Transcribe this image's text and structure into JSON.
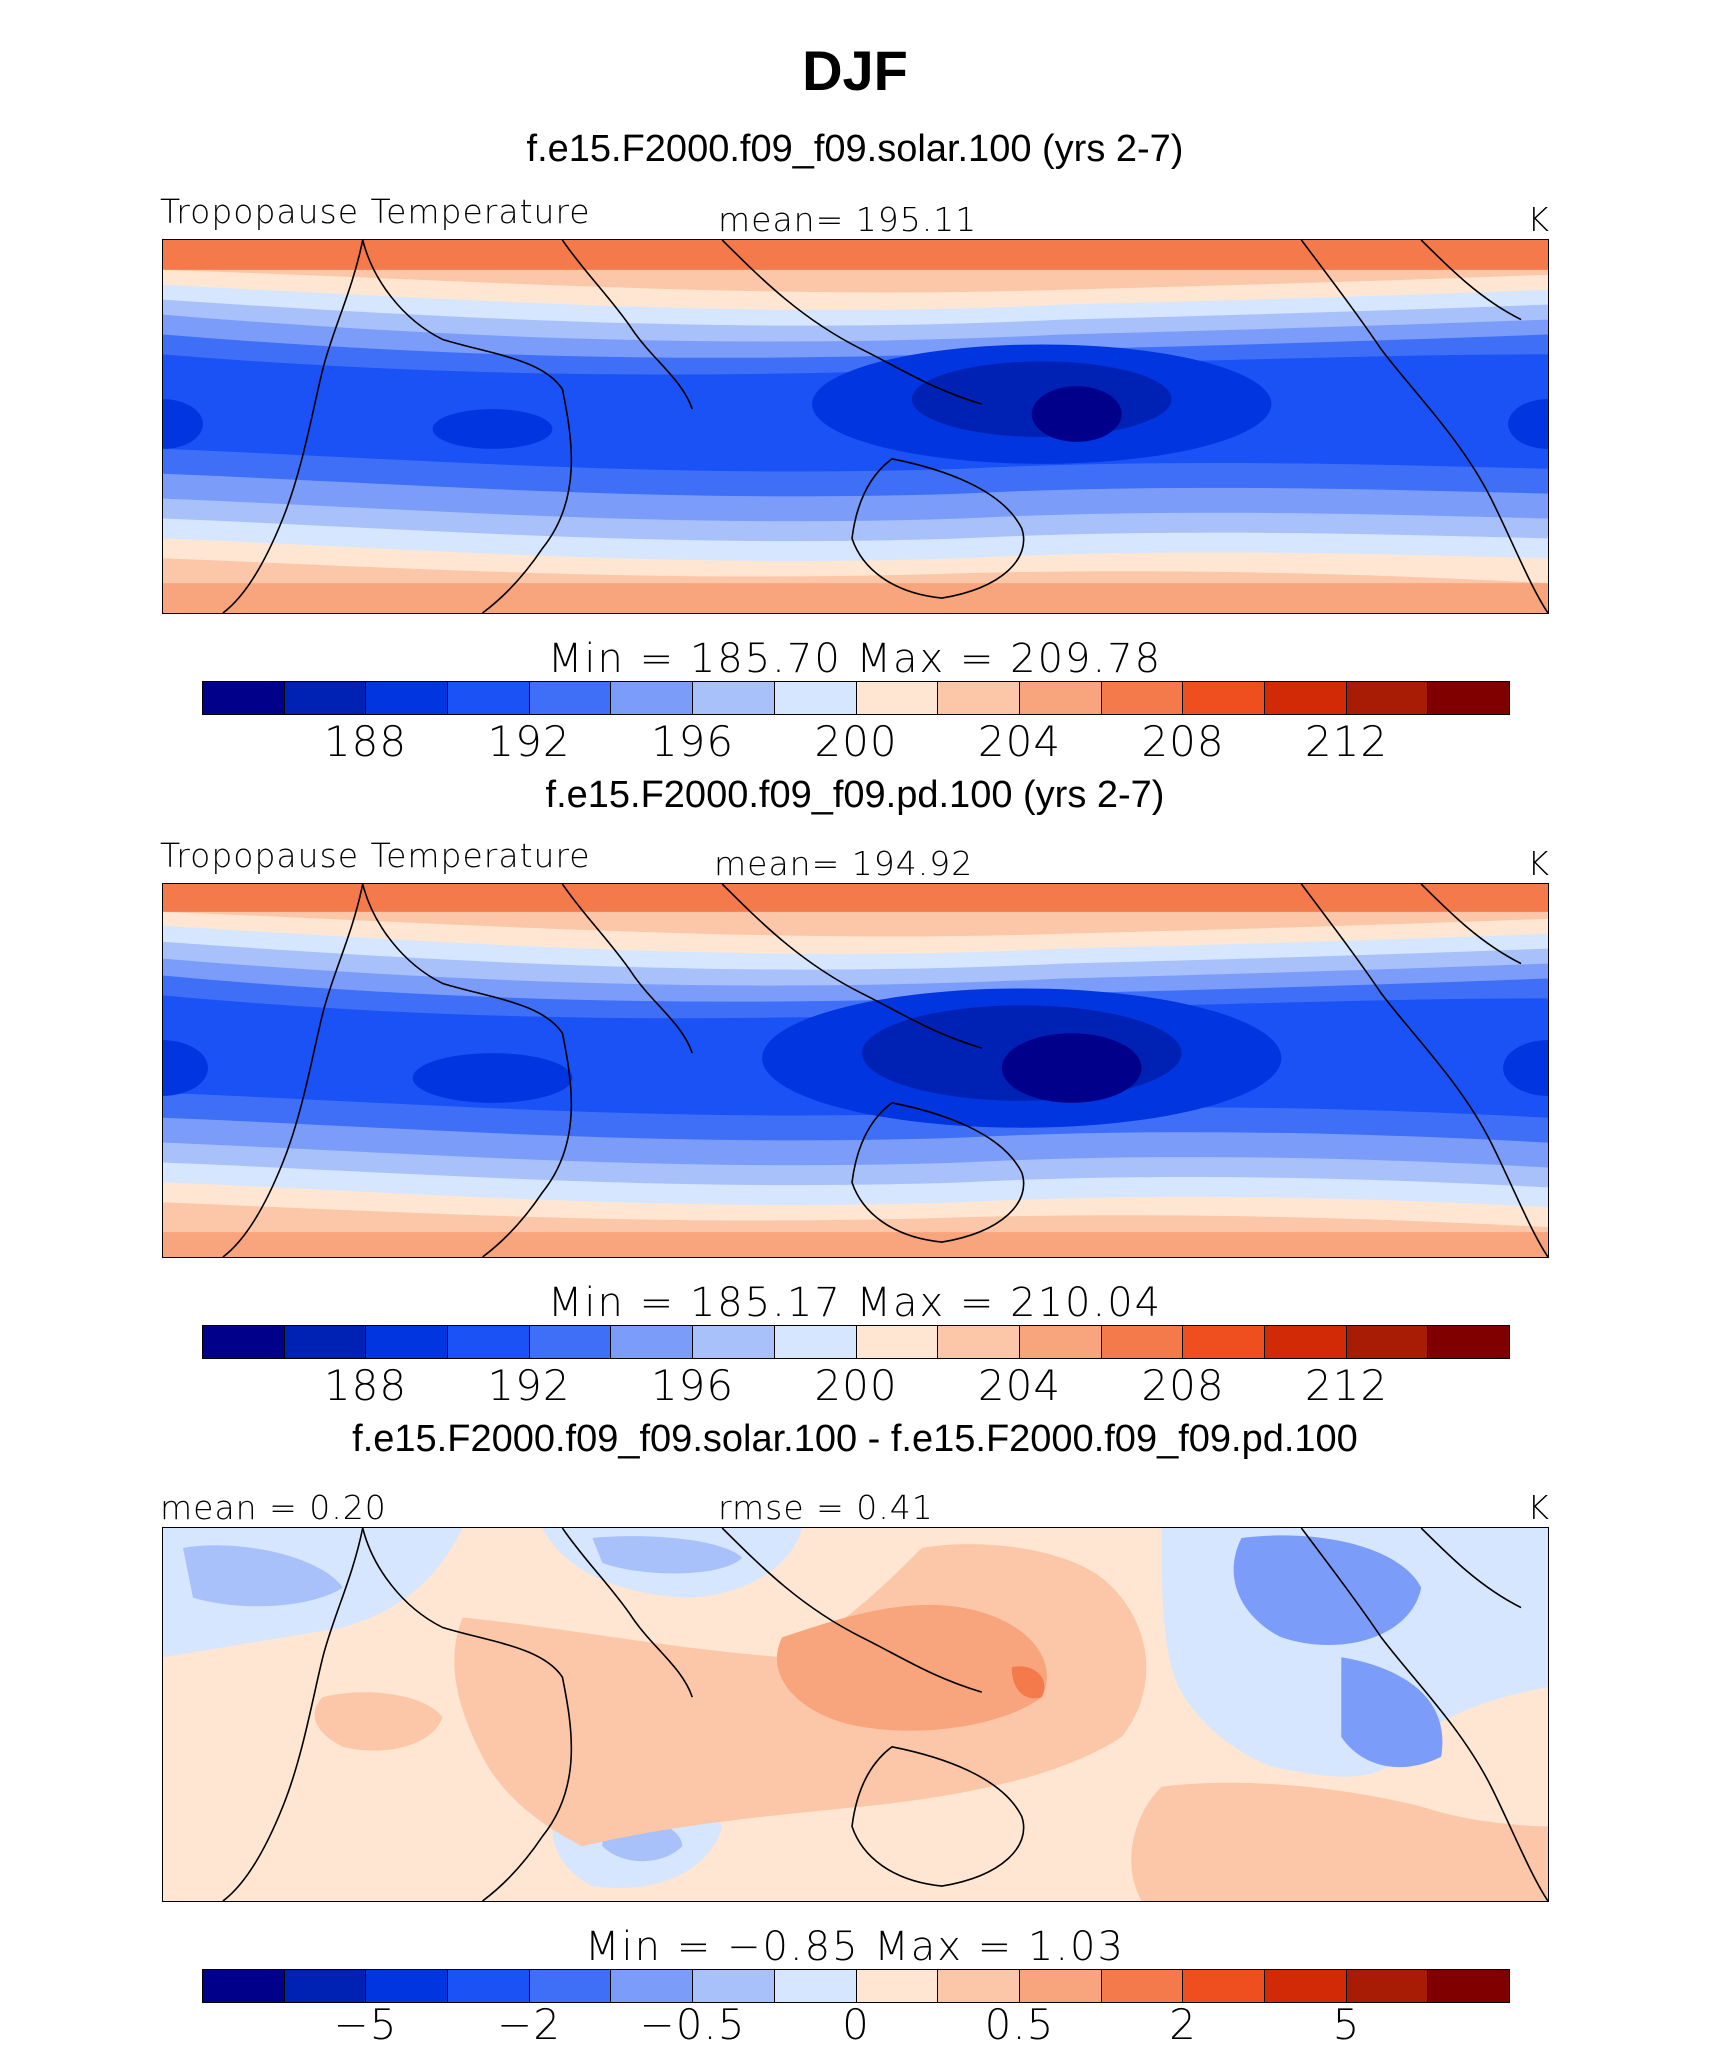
{
  "title": "DJF",
  "units_label": "K",
  "colors": [
    "#00008b",
    "#0022b4",
    "#0035e0",
    "#1a52f5",
    "#3f6ff7",
    "#7b9df9",
    "#a8c1fb",
    "#d6e6fe",
    "#fee6d2",
    "#fbc7a8",
    "#f8a47c",
    "#f47a4c",
    "#ef4e1e",
    "#d22a07",
    "#a81b05",
    "#800000"
  ],
  "panels": [
    {
      "case_title": "f.e15.F2000.f09_f09.solar.100 (yrs 2-7)",
      "left_label": "Tropopause Temperature",
      "center_label": "mean=  195.11",
      "right_label": "K",
      "min_max": "Min  =  185.70  Max  =  209.78",
      "ticks": [
        "188",
        "192",
        "196",
        "200",
        "204",
        "208",
        "212"
      ]
    },
    {
      "case_title": "f.e15.F2000.f09_f09.pd.100 (yrs 2-7)",
      "left_label": "Tropopause Temperature",
      "center_label": "mean=  194.92",
      "right_label": "K",
      "min_max": "Min  =  185.17  Max  =  210.04",
      "ticks": [
        "188",
        "192",
        "196",
        "200",
        "204",
        "208",
        "212"
      ]
    },
    {
      "case_title": "f.e15.F2000.f09_f09.solar.100 - f.e15.F2000.f09_f09.pd.100",
      "left_label": "mean  =     0.20",
      "center_label": "rmse  =     0.41",
      "right_label": "K",
      "min_max": "Min  =    −0.85  Max  =      1.03",
      "ticks": [
        "−5",
        "−2",
        "−0.5",
        "0",
        "0.5",
        "2",
        "5"
      ]
    }
  ]
}
